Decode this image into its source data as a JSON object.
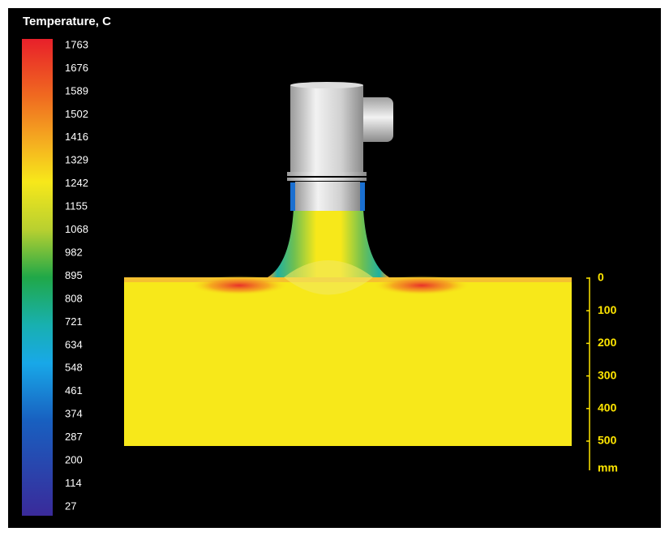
{
  "colorbar": {
    "title": "Temperature, C",
    "ticks": [
      "1763",
      "1676",
      "1589",
      "1502",
      "1416",
      "1329",
      "1242",
      "1155",
      "1068",
      "982",
      "895",
      "808",
      "721",
      "634",
      "548",
      "461",
      "374",
      "287",
      "200",
      "114",
      "27"
    ]
  },
  "scale": {
    "ticks": [
      "0",
      "100",
      "200",
      "300",
      "400",
      "500"
    ],
    "unit": "mm"
  }
}
